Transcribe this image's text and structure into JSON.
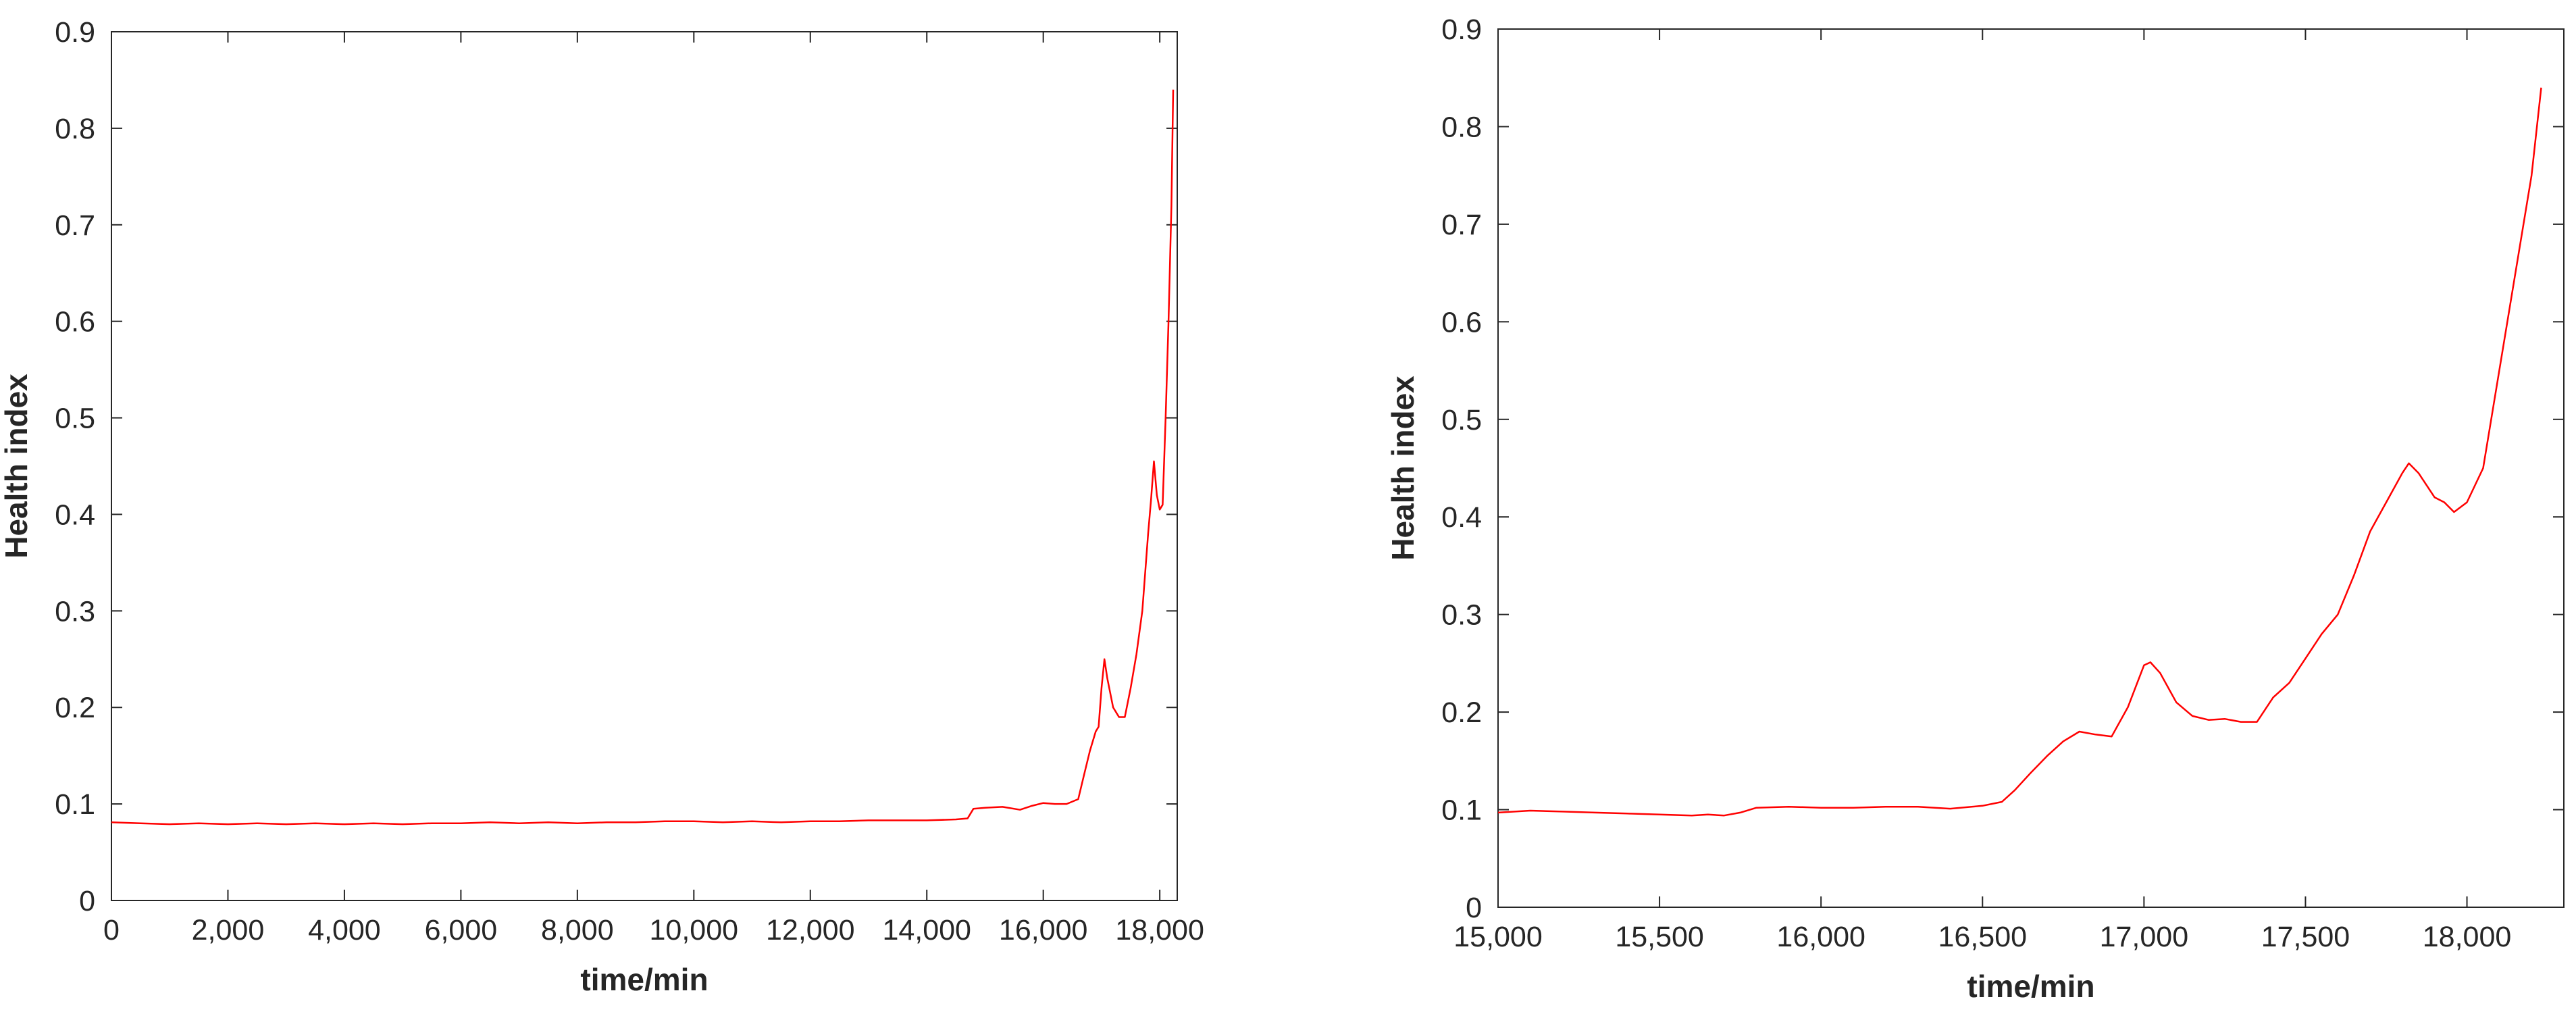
{
  "chart_data": [
    {
      "type": "line",
      "title": "",
      "xlabel": "time/min",
      "ylabel": "Health index",
      "xlim": [
        0,
        18300
      ],
      "ylim": [
        0,
        0.9
      ],
      "xticks": [
        0,
        2000,
        4000,
        6000,
        8000,
        10000,
        12000,
        14000,
        16000,
        18000
      ],
      "xtick_labels": [
        "0",
        "2,000",
        "4,000",
        "6,000",
        "8,000",
        "10,000",
        "12,000",
        "14,000",
        "16,000",
        "18,000"
      ],
      "yticks": [
        0,
        0.1,
        0.2,
        0.3,
        0.4,
        0.5,
        0.6,
        0.7,
        0.8,
        0.9
      ],
      "ytick_labels": [
        "0",
        "0.1",
        "0.2",
        "0.3",
        "0.4",
        "0.5",
        "0.6",
        "0.7",
        "0.8",
        "0.9"
      ],
      "grid": false,
      "line_color": "#ff0000",
      "series": [
        {
          "x": [
            0,
            500,
            1000,
            1500,
            2000,
            2500,
            3000,
            3500,
            4000,
            4500,
            5000,
            5500,
            6000,
            6500,
            7000,
            7500,
            8000,
            8500,
            9000,
            9500,
            10000,
            10500,
            11000,
            11500,
            12000,
            12500,
            13000,
            13500,
            14000,
            14500,
            14700,
            14800,
            15000,
            15300,
            15600,
            15800,
            16000,
            16200,
            16400,
            16600,
            16700,
            16800,
            16900,
            16950,
            17000,
            17050,
            17100,
            17200,
            17300,
            17400,
            17500,
            17600,
            17700,
            17800,
            17850,
            17900,
            17950,
            18000,
            18050,
            18100,
            18150,
            18200,
            18230
          ],
          "values": [
            0.081,
            0.08,
            0.079,
            0.08,
            0.079,
            0.08,
            0.079,
            0.08,
            0.079,
            0.08,
            0.079,
            0.08,
            0.08,
            0.081,
            0.08,
            0.081,
            0.08,
            0.081,
            0.081,
            0.082,
            0.082,
            0.081,
            0.082,
            0.081,
            0.082,
            0.082,
            0.083,
            0.083,
            0.083,
            0.084,
            0.085,
            0.095,
            0.096,
            0.097,
            0.094,
            0.098,
            0.101,
            0.1,
            0.1,
            0.105,
            0.13,
            0.155,
            0.175,
            0.18,
            0.22,
            0.25,
            0.23,
            0.2,
            0.19,
            0.19,
            0.22,
            0.255,
            0.3,
            0.38,
            0.415,
            0.455,
            0.42,
            0.405,
            0.41,
            0.5,
            0.6,
            0.72,
            0.84
          ]
        }
      ]
    },
    {
      "type": "line",
      "title": "",
      "xlabel": "time/min",
      "ylabel": "Health index",
      "xlim": [
        15000,
        18300
      ],
      "ylim": [
        0,
        0.9
      ],
      "xticks": [
        15000,
        15500,
        16000,
        16500,
        17000,
        17500,
        18000
      ],
      "xtick_labels": [
        "15,000",
        "15,500",
        "16,000",
        "16,500",
        "17,000",
        "17,500",
        "18,000"
      ],
      "yticks": [
        0,
        0.1,
        0.2,
        0.3,
        0.4,
        0.5,
        0.6,
        0.7,
        0.8,
        0.9
      ],
      "ytick_labels": [
        "0",
        "0.1",
        "0.2",
        "0.3",
        "0.4",
        "0.5",
        "0.6",
        "0.7",
        "0.8",
        "0.9"
      ],
      "grid": false,
      "line_color": "#ff0000",
      "series": [
        {
          "x": [
            15000,
            15100,
            15200,
            15300,
            15400,
            15500,
            15600,
            15650,
            15700,
            15750,
            15800,
            15900,
            16000,
            16100,
            16200,
            16300,
            16400,
            16500,
            16560,
            16600,
            16650,
            16700,
            16750,
            16800,
            16850,
            16900,
            16950,
            17000,
            17020,
            17050,
            17100,
            17150,
            17200,
            17250,
            17300,
            17350,
            17400,
            17450,
            17500,
            17550,
            17600,
            17650,
            17700,
            17750,
            17800,
            17820,
            17850,
            17900,
            17930,
            17960,
            18000,
            18050,
            18100,
            18150,
            18200,
            18230
          ],
          "values": [
            0.097,
            0.099,
            0.098,
            0.097,
            0.096,
            0.095,
            0.094,
            0.095,
            0.094,
            0.097,
            0.102,
            0.103,
            0.102,
            0.102,
            0.103,
            0.103,
            0.101,
            0.104,
            0.108,
            0.12,
            0.138,
            0.155,
            0.17,
            0.18,
            0.177,
            0.175,
            0.205,
            0.248,
            0.251,
            0.24,
            0.21,
            0.196,
            0.192,
            0.193,
            0.19,
            0.19,
            0.215,
            0.23,
            0.255,
            0.28,
            0.3,
            0.34,
            0.385,
            0.415,
            0.445,
            0.455,
            0.445,
            0.42,
            0.415,
            0.405,
            0.415,
            0.45,
            0.55,
            0.65,
            0.75,
            0.84
          ]
        }
      ]
    }
  ]
}
